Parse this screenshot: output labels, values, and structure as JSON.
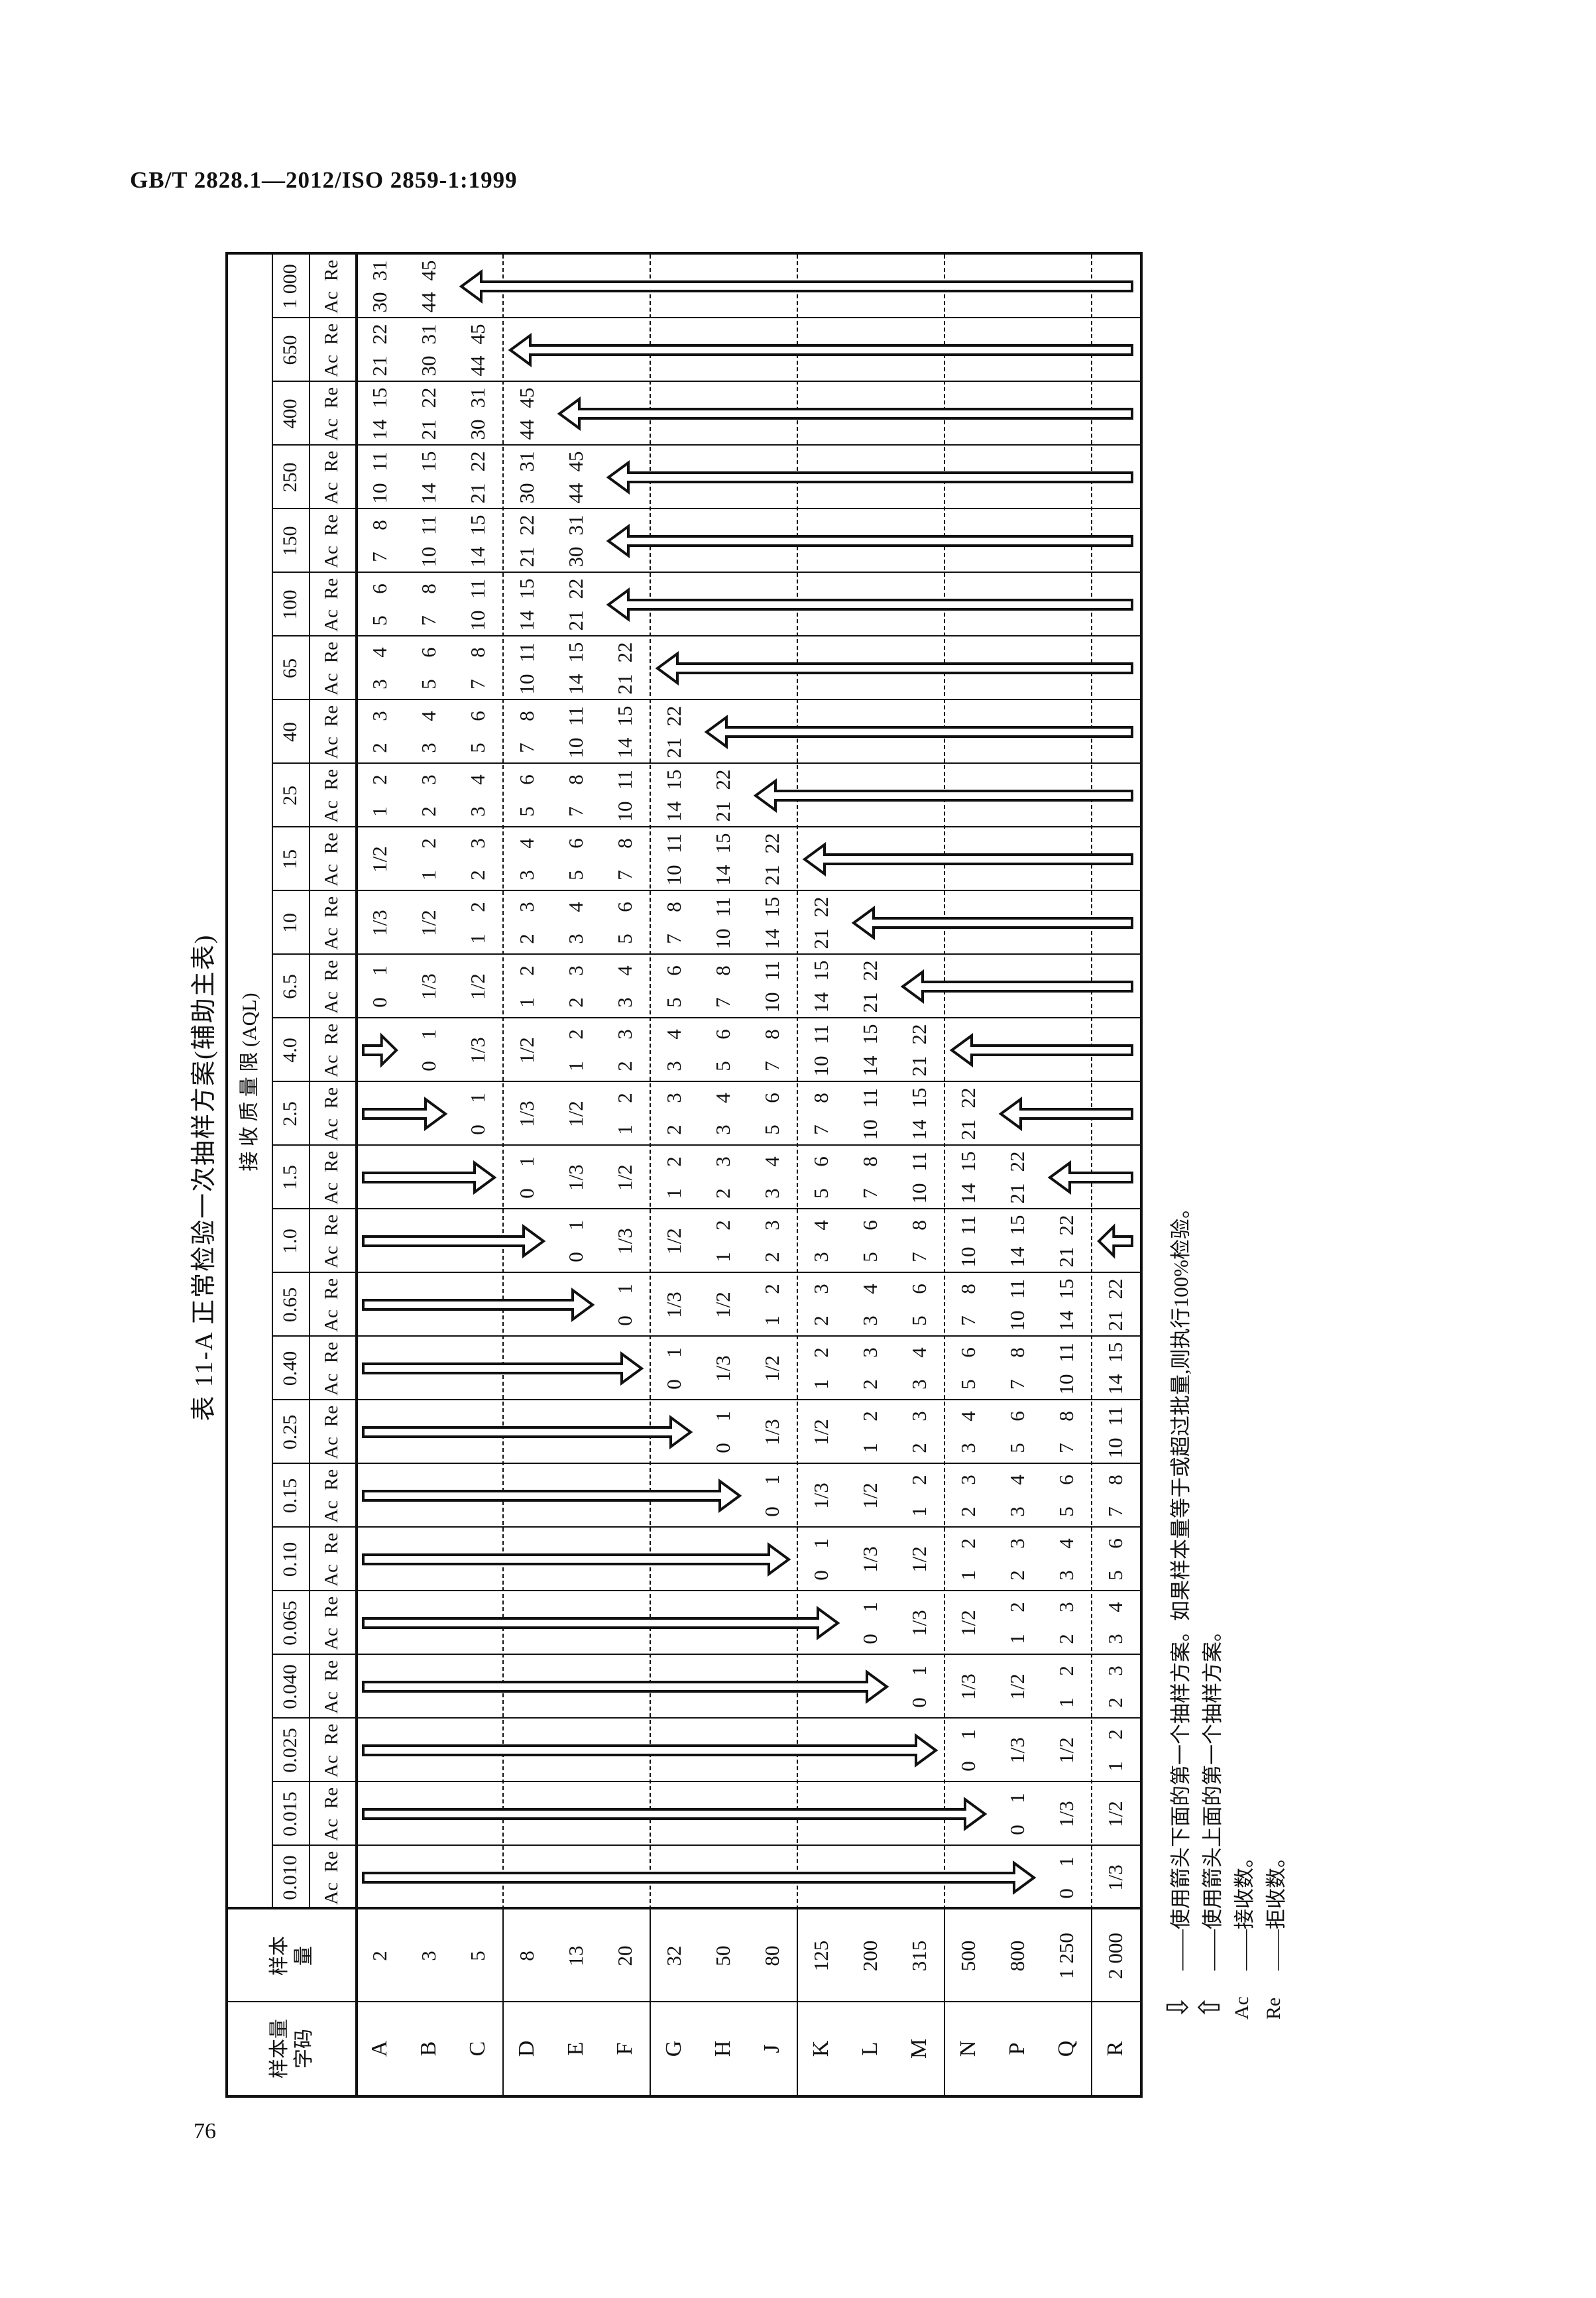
{
  "page": {
    "header": "GB/T 2828.1—2012/ISO 2859-1:1999",
    "page_number": "76"
  },
  "colors": {
    "ink": "#111111",
    "paper": "#ffffff"
  },
  "table": {
    "title": "表 11-A  正常检验一次抽样方案(辅助主表)",
    "headers": {
      "code": "样本量字码",
      "size": "样本量",
      "aql": "接 收 质 量 限 (AQL)",
      "ac": "Ac",
      "re": "Re"
    },
    "aql_values": [
      "0.010",
      "0.015",
      "0.025",
      "0.040",
      "0.065",
      "0.10",
      "0.15",
      "0.25",
      "0.40",
      "0.65",
      "1.0",
      "1.5",
      "2.5",
      "4.0",
      "6.5",
      "10",
      "15",
      "25",
      "40",
      "65",
      "100",
      "150",
      "250",
      "400",
      "650",
      "1 000"
    ],
    "rows": [
      {
        "code": "A",
        "size": "2",
        "cells": [
          "",
          "",
          "",
          "",
          "",
          "",
          "",
          "",
          "",
          "",
          "",
          "",
          "",
          "",
          "0 1",
          "1/3",
          "1/2",
          "1 2",
          "2 3",
          "3 4",
          "5 6",
          "7 8",
          "10 11",
          "14 15",
          "21 22",
          "30 31"
        ]
      },
      {
        "code": "B",
        "size": "3",
        "cells": [
          "",
          "",
          "",
          "",
          "",
          "",
          "",
          "",
          "",
          "",
          "",
          "",
          "",
          "0 1",
          "1/3",
          "1/2",
          "1 2",
          "2 3",
          "3 4",
          "5 6",
          "7 8",
          "10 11",
          "14 15",
          "21 22",
          "30 31",
          "44 45"
        ]
      },
      {
        "code": "C",
        "size": "5",
        "cells": [
          "",
          "",
          "",
          "",
          "",
          "",
          "",
          "",
          "",
          "",
          "",
          "",
          "0 1",
          "1/3",
          "1/2",
          "1 2",
          "2 3",
          "3 4",
          "5 6",
          "7 8",
          "10 11",
          "14 15",
          "21 22",
          "30 31",
          "44 45",
          ""
        ]
      },
      {
        "code": "D",
        "size": "8",
        "cells": [
          "",
          "",
          "",
          "",
          "",
          "",
          "",
          "",
          "",
          "",
          "",
          "0 1",
          "1/3",
          "1/2",
          "1 2",
          "2 3",
          "3 4",
          "5 6",
          "7 8",
          "10 11",
          "14 15",
          "21 22",
          "30 31",
          "44 45",
          "",
          ""
        ]
      },
      {
        "code": "E",
        "size": "13",
        "cells": [
          "",
          "",
          "",
          "",
          "",
          "",
          "",
          "",
          "",
          "",
          "0 1",
          "1/3",
          "1/2",
          "1 2",
          "2 3",
          "3 4",
          "5 6",
          "7 8",
          "10 11",
          "14 15",
          "21 22",
          "30 31",
          "44 45",
          "",
          "",
          ""
        ]
      },
      {
        "code": "F",
        "size": "20",
        "cells": [
          "",
          "",
          "",
          "",
          "",
          "",
          "",
          "",
          "",
          "0 1",
          "1/3",
          "1/2",
          "1 2",
          "2 3",
          "3 4",
          "5 6",
          "7 8",
          "10 11",
          "14 15",
          "21 22",
          "",
          "",
          "",
          "",
          "",
          ""
        ]
      },
      {
        "code": "G",
        "size": "32",
        "cells": [
          "",
          "",
          "",
          "",
          "",
          "",
          "",
          "",
          "0 1",
          "1/3",
          "1/2",
          "1 2",
          "2 3",
          "3 4",
          "5 6",
          "7 8",
          "10 11",
          "14 15",
          "21 22",
          "",
          "",
          "",
          "",
          "",
          "",
          ""
        ]
      },
      {
        "code": "H",
        "size": "50",
        "cells": [
          "",
          "",
          "",
          "",
          "",
          "",
          "",
          "0 1",
          "1/3",
          "1/2",
          "1 2",
          "2 3",
          "3 4",
          "5 6",
          "7 8",
          "10 11",
          "14 15",
          "21 22",
          "",
          "",
          "",
          "",
          "",
          "",
          "",
          ""
        ]
      },
      {
        "code": "J",
        "size": "80",
        "cells": [
          "",
          "",
          "",
          "",
          "",
          "",
          "0 1",
          "1/3",
          "1/2",
          "1 2",
          "2 3",
          "3 4",
          "5 6",
          "7 8",
          "10 11",
          "14 15",
          "21 22",
          "",
          "",
          "",
          "",
          "",
          "",
          "",
          "",
          ""
        ]
      },
      {
        "code": "K",
        "size": "125",
        "cells": [
          "",
          "",
          "",
          "",
          "",
          "0 1",
          "1/3",
          "1/2",
          "1 2",
          "2 3",
          "3 4",
          "5 6",
          "7 8",
          "10 11",
          "14 15",
          "21 22",
          "",
          "",
          "",
          "",
          "",
          "",
          "",
          "",
          "",
          ""
        ]
      },
      {
        "code": "L",
        "size": "200",
        "cells": [
          "",
          "",
          "",
          "",
          "0 1",
          "1/3",
          "1/2",
          "1 2",
          "2 3",
          "3 4",
          "5 6",
          "7 8",
          "10 11",
          "14 15",
          "21 22",
          "",
          "",
          "",
          "",
          "",
          "",
          "",
          "",
          "",
          "",
          ""
        ]
      },
      {
        "code": "M",
        "size": "315",
        "cells": [
          "",
          "",
          "",
          "0 1",
          "1/3",
          "1/2",
          "1 2",
          "2 3",
          "3 4",
          "5 6",
          "7 8",
          "10 11",
          "14 15",
          "21 22",
          "",
          "",
          "",
          "",
          "",
          "",
          "",
          "",
          "",
          "",
          "",
          ""
        ]
      },
      {
        "code": "N",
        "size": "500",
        "cells": [
          "",
          "",
          "0 1",
          "1/3",
          "1/2",
          "1 2",
          "2 3",
          "3 4",
          "5 6",
          "7 8",
          "10 11",
          "14 15",
          "21 22",
          "",
          "",
          "",
          "",
          "",
          "",
          "",
          "",
          "",
          "",
          "",
          "",
          ""
        ]
      },
      {
        "code": "P",
        "size": "800",
        "cells": [
          "",
          "0 1",
          "1/3",
          "1/2",
          "1 2",
          "2 3",
          "3 4",
          "5 6",
          "7 8",
          "10 11",
          "14 15",
          "21 22",
          "",
          "",
          "",
          "",
          "",
          "",
          "",
          "",
          "",
          "",
          "",
          "",
          "",
          ""
        ]
      },
      {
        "code": "Q",
        "size": "1 250",
        "cells": [
          "0 1",
          "1/3",
          "1/2",
          "1 2",
          "2 3",
          "3 4",
          "5 6",
          "7 8",
          "10 11",
          "14 15",
          "21 22",
          "",
          "",
          "",
          "",
          "",
          "",
          "",
          "",
          "",
          "",
          "",
          "",
          "",
          "",
          ""
        ]
      },
      {
        "code": "R",
        "size": "2 000",
        "cells": [
          "1/3",
          "1/2",
          "1 2",
          "2 3",
          "3 4",
          "5 6",
          "7 8",
          "10 11",
          "14 15",
          "21 22",
          "",
          "",
          "",
          "",
          "",
          "",
          "",
          "",
          "",
          "",
          "",
          "",
          "",
          "",
          "",
          ""
        ]
      }
    ],
    "row_groups_end_after": [
      2,
      5,
      8,
      11,
      14
    ],
    "arrows": [
      {
        "dir": "down",
        "col": 0,
        "from": 0,
        "to": 13
      },
      {
        "dir": "down",
        "col": 1,
        "from": 0,
        "to": 12
      },
      {
        "dir": "down",
        "col": 2,
        "from": 0,
        "to": 11
      },
      {
        "dir": "down",
        "col": 3,
        "from": 0,
        "to": 10
      },
      {
        "dir": "down",
        "col": 4,
        "from": 0,
        "to": 9
      },
      {
        "dir": "down",
        "col": 5,
        "from": 0,
        "to": 8
      },
      {
        "dir": "down",
        "col": 6,
        "from": 0,
        "to": 7
      },
      {
        "dir": "down",
        "col": 7,
        "from": 0,
        "to": 6
      },
      {
        "dir": "down",
        "col": 8,
        "from": 0,
        "to": 5
      },
      {
        "dir": "down",
        "col": 9,
        "from": 0,
        "to": 4
      },
      {
        "dir": "down",
        "col": 10,
        "from": 0,
        "to": 3
      },
      {
        "dir": "down",
        "col": 11,
        "from": 0,
        "to": 2
      },
      {
        "dir": "down",
        "col": 12,
        "from": 0,
        "to": 1
      },
      {
        "dir": "down",
        "col": 13,
        "from": 0,
        "to": 0
      },
      {
        "dir": "up",
        "col": 10,
        "from": 15,
        "to": 15
      },
      {
        "dir": "up",
        "col": 11,
        "from": 14,
        "to": 15
      },
      {
        "dir": "up",
        "col": 12,
        "from": 13,
        "to": 15
      },
      {
        "dir": "up",
        "col": 13,
        "from": 12,
        "to": 15
      },
      {
        "dir": "up",
        "col": 14,
        "from": 11,
        "to": 15
      },
      {
        "dir": "up",
        "col": 15,
        "from": 10,
        "to": 15
      },
      {
        "dir": "up",
        "col": 16,
        "from": 9,
        "to": 15
      },
      {
        "dir": "up",
        "col": 17,
        "from": 8,
        "to": 15
      },
      {
        "dir": "up",
        "col": 18,
        "from": 7,
        "to": 15
      },
      {
        "dir": "up",
        "col": 19,
        "from": 6,
        "to": 15
      },
      {
        "dir": "up",
        "col": 20,
        "from": 5,
        "to": 15
      },
      {
        "dir": "up",
        "col": 21,
        "from": 5,
        "to": 15
      },
      {
        "dir": "up",
        "col": 22,
        "from": 5,
        "to": 15
      },
      {
        "dir": "up",
        "col": 23,
        "from": 4,
        "to": 15
      },
      {
        "dir": "up",
        "col": 24,
        "from": 3,
        "to": 15
      },
      {
        "dir": "up",
        "col": 25,
        "from": 2,
        "to": 15
      }
    ]
  },
  "legend": {
    "items": [
      {
        "symbol": "⇩",
        "symbol_name": "down-arrow",
        "text": "——使用箭头下面的第一个抽样方案。如果样本量等于或超过批量,则执行100%检验。"
      },
      {
        "symbol": "⇧",
        "symbol_name": "up-arrow",
        "text": "——使用箭头上面的第一个抽样方案。"
      },
      {
        "symbol": "Ac",
        "symbol_name": "ac",
        "text": "——接收数。"
      },
      {
        "symbol": "Re",
        "symbol_name": "re",
        "text": "——拒收数。"
      }
    ]
  }
}
